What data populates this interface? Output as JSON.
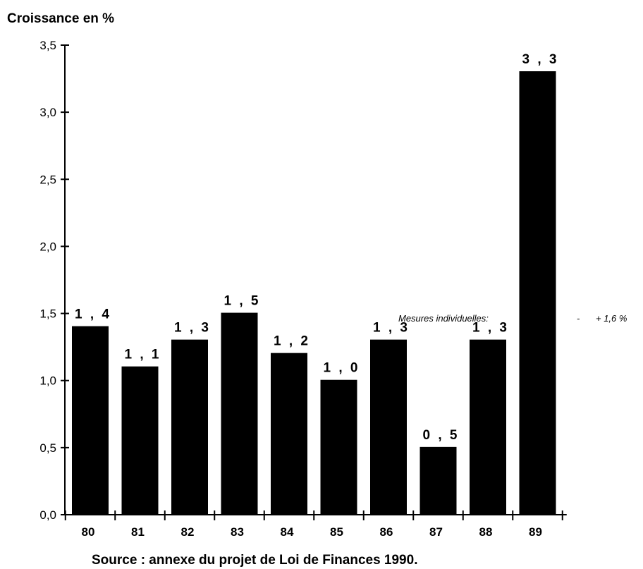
{
  "chart_data": {
    "type": "bar",
    "ylabel": "Croissance en %",
    "categories": [
      "80",
      "81",
      "82",
      "83",
      "84",
      "85",
      "86",
      "87",
      "88",
      "89"
    ],
    "values": [
      1.4,
      1.1,
      1.3,
      1.5,
      1.2,
      1.0,
      1.3,
      0.5,
      1.3,
      3.3
    ],
    "value_labels": [
      "1 , 4",
      "1 , 1",
      "1 , 3",
      "1 , 5",
      "1 , 2",
      "1 , 0",
      "1 , 3",
      "0 , 5",
      "1 , 3",
      "3 , 3"
    ],
    "ylim": [
      0,
      3.5
    ],
    "yticks": [
      "0,0",
      "0,5",
      "1,0",
      "1,5",
      "2,0",
      "2,5",
      "3,0",
      "3,5"
    ],
    "bar_color": "#000000",
    "grid": false,
    "annotation": {
      "label": "Mesures individuelles:",
      "dash": "-",
      "value": "+ 1,6 %"
    },
    "source": "Source : annexe du projet de Loi de Finances 1990."
  }
}
